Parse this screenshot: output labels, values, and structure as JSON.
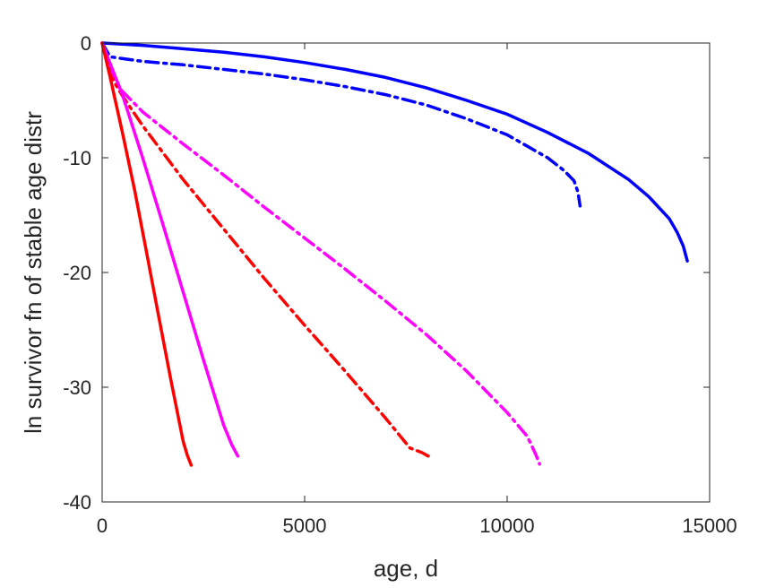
{
  "chart_data": {
    "type": "line",
    "title": "",
    "xlabel": "age, d",
    "ylabel": "ln survivor fn of stable age distr",
    "xlim": [
      0,
      15000
    ],
    "ylim": [
      -40,
      0
    ],
    "xticks": [
      0,
      5000,
      10000,
      15000
    ],
    "yticks": [
      0,
      -10,
      -20,
      -30,
      -40
    ],
    "grid": false,
    "legend": "none",
    "series": [
      {
        "color": "#0000ff",
        "style": "solid",
        "x": [
          0,
          500,
          1000,
          2000,
          3000,
          4000,
          5000,
          6000,
          7000,
          8000,
          9000,
          10000,
          11000,
          12000,
          13000,
          13500,
          14000,
          14200,
          14350,
          14450
        ],
        "y": [
          0,
          -0.1,
          -0.2,
          -0.5,
          -0.8,
          -1.2,
          -1.7,
          -2.3,
          -3.0,
          -3.9,
          -5.0,
          -6.2,
          -7.8,
          -9.6,
          -11.9,
          -13.4,
          -15.3,
          -16.5,
          -17.7,
          -19.0
        ]
      },
      {
        "color": "#0000ff",
        "style": "dashdot",
        "x": [
          0,
          200,
          1000,
          2000,
          3000,
          4000,
          5000,
          6000,
          7000,
          8000,
          9000,
          10000,
          11000,
          11400,
          11650,
          11750,
          11800
        ],
        "y": [
          0,
          -1.2,
          -1.6,
          -1.9,
          -2.3,
          -2.7,
          -3.2,
          -3.8,
          -4.5,
          -5.4,
          -6.6,
          -8.0,
          -10.0,
          -11.1,
          -12.0,
          -13.0,
          -14.2
        ]
      },
      {
        "color": "#ff00ff",
        "style": "dashdot",
        "x": [
          0,
          200,
          500,
          1000,
          2000,
          3000,
          4000,
          5000,
          6000,
          7000,
          8000,
          9000,
          10000,
          10500,
          10700,
          10800
        ],
        "y": [
          0,
          -2.5,
          -4.2,
          -6.0,
          -8.8,
          -11.5,
          -14.3,
          -17.0,
          -19.7,
          -22.5,
          -25.4,
          -28.6,
          -32.2,
          -34.3,
          -35.8,
          -36.7
        ]
      },
      {
        "color": "#ff0000",
        "style": "dashdot",
        "x": [
          0,
          200,
          500,
          1000,
          2000,
          3000,
          4000,
          5000,
          6000,
          7000,
          7600,
          7900,
          8050
        ],
        "y": [
          0,
          -2.8,
          -4.6,
          -7.2,
          -11.9,
          -16.2,
          -20.5,
          -24.6,
          -28.6,
          -32.7,
          -35.3,
          -35.7,
          -36.0
        ]
      },
      {
        "color": "#ff00ff",
        "style": "solid",
        "x": [
          0,
          200,
          500,
          1000,
          1500,
          2000,
          2500,
          3000,
          3200,
          3350
        ],
        "y": [
          0,
          -1.8,
          -4.5,
          -10.0,
          -15.8,
          -21.7,
          -27.6,
          -33.3,
          -35.0,
          -36.0
        ]
      },
      {
        "color": "#ff0000",
        "style": "solid",
        "x": [
          0,
          200,
          500,
          800,
          1100,
          1400,
          1700,
          2000,
          2100,
          2200
        ],
        "y": [
          0,
          -3.0,
          -7.8,
          -12.8,
          -18.3,
          -23.9,
          -29.4,
          -34.7,
          -35.9,
          -36.8
        ]
      }
    ]
  }
}
